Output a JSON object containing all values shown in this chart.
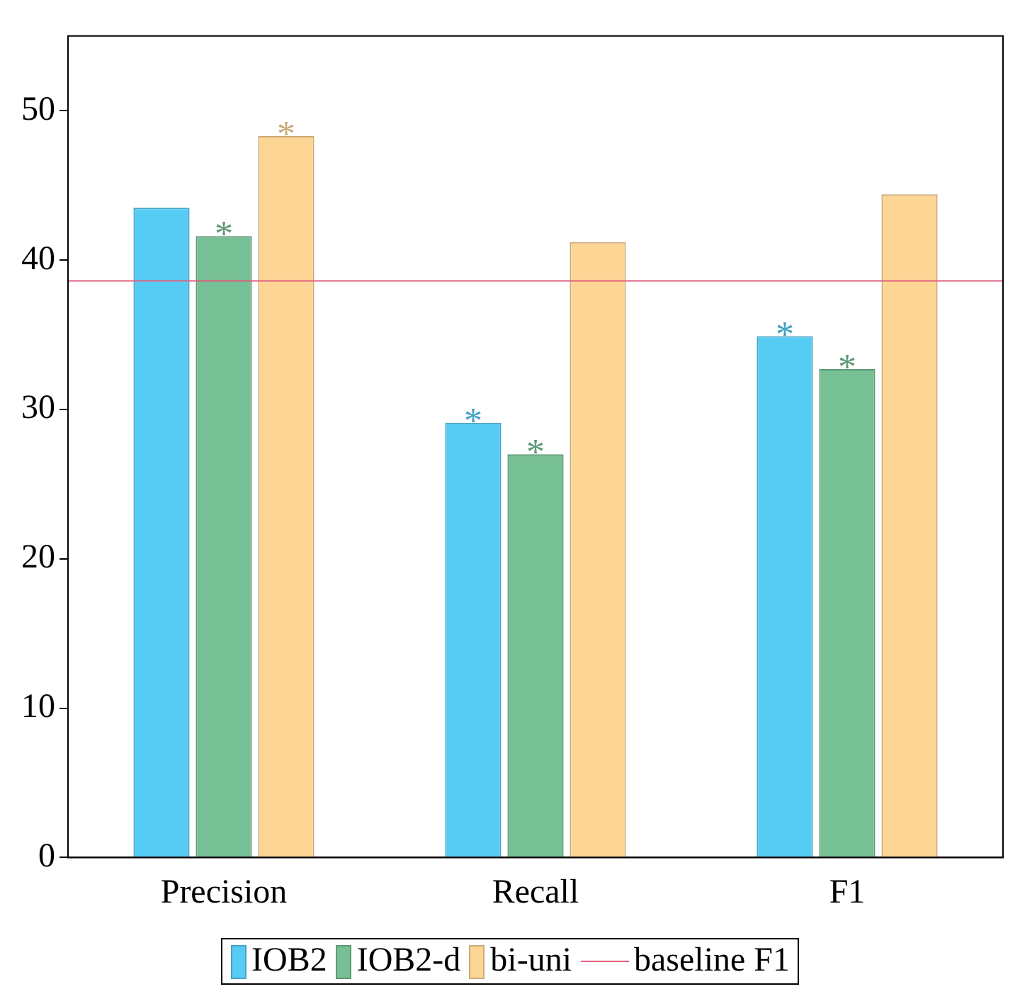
{
  "chart_data": {
    "type": "bar",
    "categories": [
      "Precision",
      "Recall",
      "F1"
    ],
    "series": [
      {
        "name": "IOB2",
        "color": "#56ccf5",
        "values": [
          43.5,
          29.1,
          34.9
        ],
        "value_labels": [
          null,
          "*",
          "*"
        ]
      },
      {
        "name": "IOB2-d",
        "color": "#77bf94",
        "values": [
          41.6,
          27.0,
          32.7
        ],
        "value_labels": [
          "*",
          "*",
          "*"
        ]
      },
      {
        "name": "bi-uni",
        "color": "#fdd595",
        "values": [
          48.3,
          41.2,
          44.4
        ],
        "value_labels": [
          "*",
          null,
          null
        ]
      }
    ],
    "ylim": [
      0,
      55
    ],
    "yticks": [
      0,
      10,
      20,
      30,
      40,
      50
    ],
    "grid": false,
    "legend": "bottom",
    "ref_lines": [
      {
        "axis": "y",
        "value": 38.6,
        "label": "baseline F1",
        "color": "#e0607e"
      }
    ]
  }
}
